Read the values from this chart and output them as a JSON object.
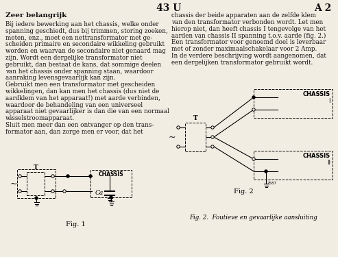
{
  "header_left": "43 U",
  "header_right": "A 2",
  "title_bold": "Zeer belangrijk",
  "left_col": [
    "Bij iedere bewerking aan het chassis, welke onder",
    "spanning geschiedt, dus bij trimmen, storing zoeken,",
    "meten, enz., moet een nettransformator met ge-",
    "scheiden primaire en secondaire wikkeling gebruikt",
    "worden en waarvan de secondaire niet genaard mag",
    "zijn. Wordt een dergelijke transformator niet",
    "gebruikt, dan bestaat de kans, dat sommige deelen",
    "van het chassis onder spanning staan, waardoor",
    "aanraking levensgevaarlijk kan zijn.",
    "Gebruikt men een transformator met gescheiden",
    "wikkelingen, dan kan men het chassis (dus niet de",
    "aardklem van het apparaat!) met aarde verbinden,",
    "waardoor de behandeling van een universeel",
    "apparaat niet gevaarlijker is dan die van een normaal",
    "wisselstroomapparaat.",
    "Sluit men meer dan een ontvanger op den trans-",
    "formator aan, dan zorge men er voor, dat het"
  ],
  "right_col": [
    "chassis der beide apparaten aan de zelfde klem",
    "van den transformator verbonden wordt. Let men",
    "hierop niet, dan heeft chassis I tengevolge van het",
    "aarden van chassis II spanning t.o.v. aarde (fig. 2.)",
    "Een transformator voor genoemd doel is leverbaar",
    "met of zonder maximaalschakelaar voor 2 Amp.",
    "In de verdere beschrijving wordt aangenomen, dat",
    "een dergelijken transformator gebruikt wordt."
  ],
  "fig1_caption": "Fig. 1",
  "fig2_caption": "Fig. 2",
  "fig2_label": "Fig. 2.  Foutieve en gevaarlijke aansluiting",
  "bg": "#f2ede3",
  "tc": "#111111"
}
